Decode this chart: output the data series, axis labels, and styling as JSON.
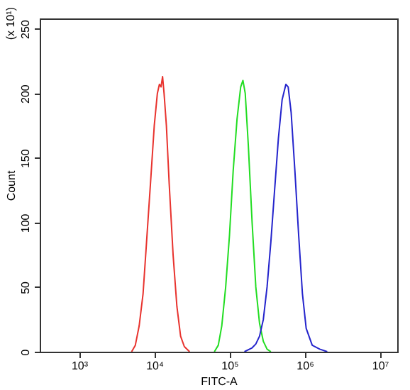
{
  "chart_data": {
    "type": "line",
    "xlabel": "FITC-A",
    "ylabel": "Count",
    "annotations": [
      "(x 10¹)"
    ],
    "log": "x",
    "xlim": [
      300,
      17000000
    ],
    "ylim": [
      0,
      258
    ],
    "xticks": [
      {
        "value": 1000,
        "label": "10³"
      },
      {
        "value": 10000,
        "label": "10⁴"
      },
      {
        "value": 100000,
        "label": "10⁵"
      },
      {
        "value": 1000000,
        "label": "10⁶"
      },
      {
        "value": 10000000,
        "label": "10⁷"
      }
    ],
    "yticks": [
      0,
      50,
      100,
      150,
      200,
      250
    ],
    "grid": false,
    "marker": "none",
    "line_style": "solid",
    "series": [
      {
        "color": "#e8332e",
        "x": [
          5000,
          5600,
          6300,
          7100,
          7900,
          8900,
          10000,
          11000,
          11700,
          12300,
          12900,
          13500,
          14500,
          15800,
          17800,
          20000,
          22400,
          25100,
          29500
        ],
        "values": [
          0,
          5,
          20,
          45,
          85,
          130,
          175,
          200,
          207,
          205,
          213,
          200,
          175,
          130,
          75,
          35,
          12,
          4,
          0
        ]
      },
      {
        "color": "#22dd22",
        "x": [
          63000,
          71000,
          79000,
          89000,
          100000,
          112000,
          126000,
          141000,
          151000,
          162000,
          178000,
          200000,
          224000,
          251000,
          282000,
          316000,
          355000
        ],
        "values": [
          0,
          5,
          20,
          50,
          90,
          140,
          180,
          205,
          210,
          200,
          160,
          100,
          50,
          22,
          8,
          2,
          0
        ]
      },
      {
        "color": "#2424cc",
        "x": [
          158000,
          200000,
          224000,
          251000,
          282000,
          316000,
          355000,
          398000,
          447000,
          501000,
          562000,
          603000,
          661000,
          741000,
          832000,
          933000,
          1047000,
          1259000,
          1585000,
          1995000
        ],
        "values": [
          0,
          3,
          6,
          12,
          25,
          50,
          85,
          125,
          165,
          195,
          207,
          205,
          185,
          140,
          90,
          45,
          18,
          5,
          2,
          0
        ]
      }
    ]
  }
}
